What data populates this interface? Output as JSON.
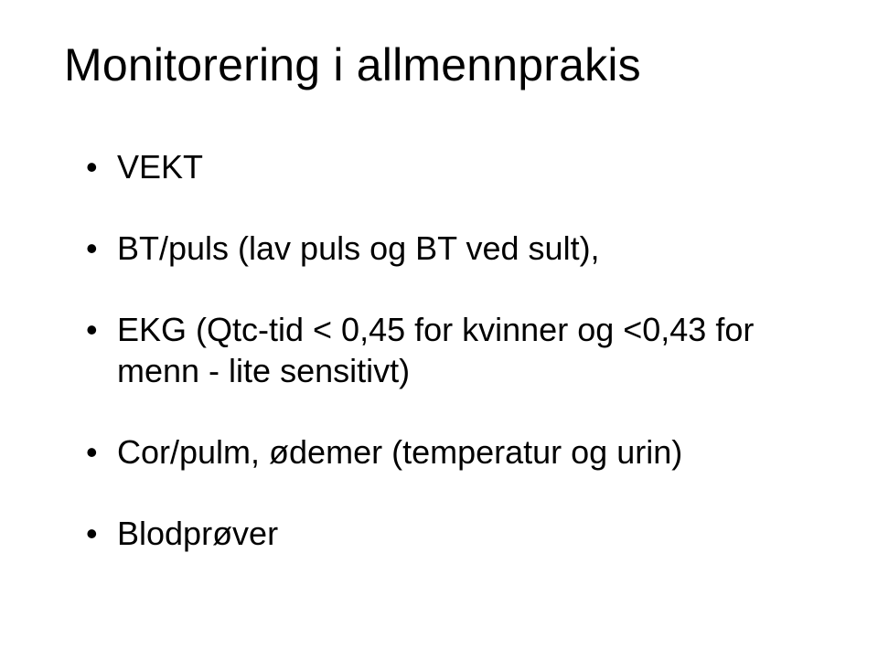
{
  "slide": {
    "title": "Monitorering i allmennprakis",
    "title_fontsize": 50,
    "body_fontsize": 36,
    "background_color": "#ffffff",
    "text_color": "#000000",
    "bullets": [
      "VEKT",
      "BT/puls (lav puls og BT ved sult),",
      "EKG (Qtc-tid < 0,45 for kvinner og <0,43 for menn - lite sensitivt)",
      "Cor/pulm, ødemer (temperatur og urin)",
      "Blodprøver"
    ]
  }
}
